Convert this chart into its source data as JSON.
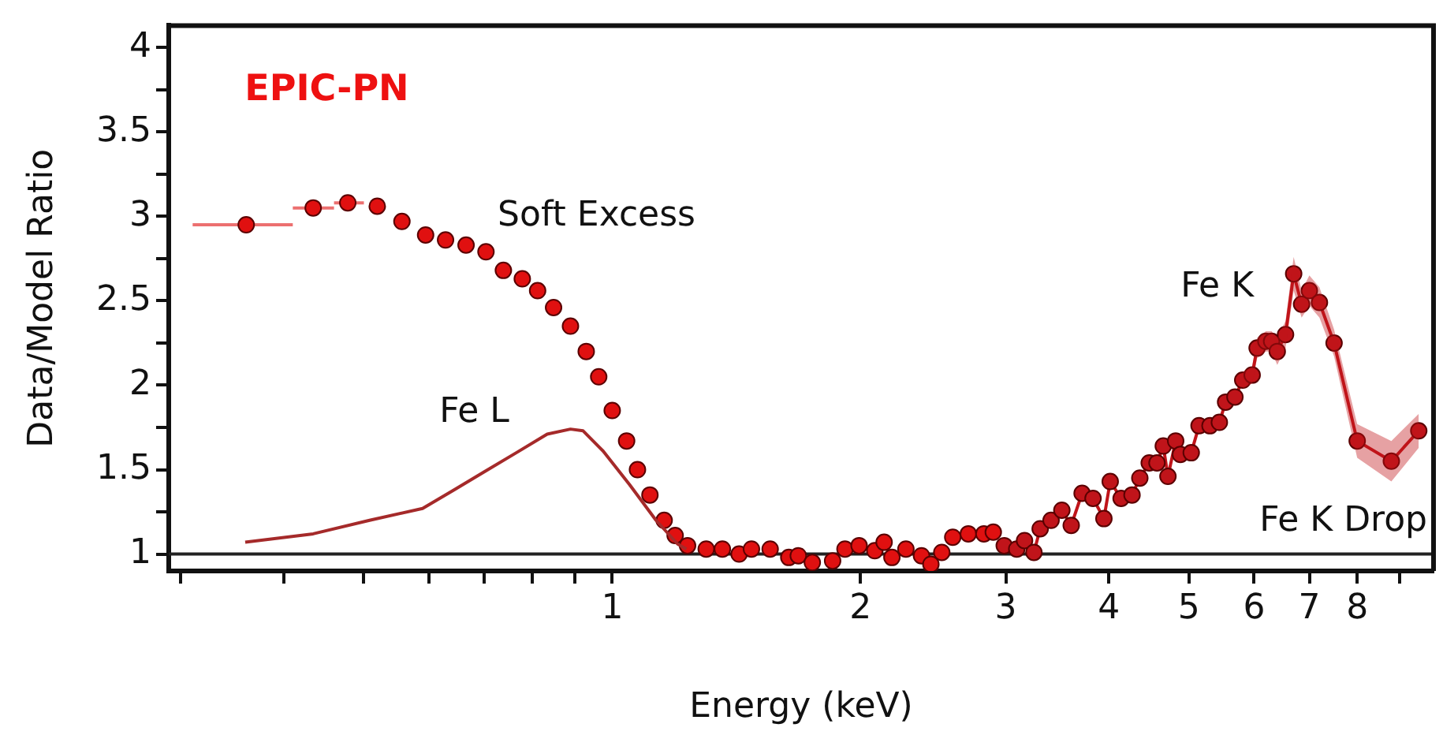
{
  "chart_data": {
    "type": "scatter",
    "xlabel": "Energy (keV)",
    "ylabel": "Data/Model Ratio",
    "log": "x",
    "xlim": [
      0.29,
      9.9
    ],
    "ylim": [
      0.9,
      4.13
    ],
    "xticks": [
      {
        "value": 0.3,
        "label": null
      },
      {
        "value": 0.4,
        "label": null
      },
      {
        "value": 0.5,
        "label": null
      },
      {
        "value": 0.6,
        "label": null
      },
      {
        "value": 0.7,
        "label": null
      },
      {
        "value": 0.8,
        "label": null
      },
      {
        "value": 0.9,
        "label": null
      },
      1,
      2,
      3,
      4,
      5,
      6,
      7,
      8,
      {
        "value": 9,
        "label": null
      }
    ],
    "yticks": [
      1,
      {
        "value": 1.25,
        "label": null
      },
      1.5,
      {
        "value": 1.75,
        "label": null
      },
      2,
      {
        "value": 2.25,
        "label": null
      },
      2.5,
      {
        "value": 2.75,
        "label": null
      },
      3,
      {
        "value": 3.25,
        "label": null
      },
      3.5,
      {
        "value": 3.75,
        "label": null
      },
      4
    ],
    "grid": false,
    "legend": false,
    "marker": "circle",
    "series": [
      {
        "type": "line",
        "color": "#a52a2a",
        "marker": "none",
        "x": [
          0.359,
          0.434,
          0.508,
          0.589,
          0.643,
          0.701,
          0.765,
          0.834,
          0.89,
          0.922,
          0.975,
          1.05,
          1.13,
          1.2,
          1.23
        ],
        "values": [
          1.07,
          1.12,
          1.2,
          1.27,
          1.38,
          1.49,
          1.6,
          1.71,
          1.74,
          1.73,
          1.61,
          1.41,
          1.2,
          1.06,
          1.03
        ]
      },
      {
        "type": "scatter",
        "color": "#e01010",
        "x": [
          0.36,
          0.434,
          0.478,
          0.519,
          0.556,
          0.594,
          0.628,
          0.665,
          0.703,
          0.738,
          0.778,
          0.812,
          0.849,
          0.89,
          0.93,
          0.963,
          1.0,
          1.041,
          1.073,
          1.111,
          1.156,
          1.192,
          1.234,
          1.3,
          1.36,
          1.425,
          1.475,
          1.554,
          1.637,
          1.681,
          1.748,
          1.85,
          1.915,
          1.992,
          2.081,
          2.136,
          2.183,
          2.27,
          2.371,
          2.434,
          2.509,
          2.587,
          2.702,
          2.822,
          2.897
        ],
        "values": [
          2.95,
          3.05,
          3.08,
          3.06,
          2.97,
          2.89,
          2.86,
          2.83,
          2.79,
          2.68,
          2.63,
          2.56,
          2.46,
          2.35,
          2.2,
          2.05,
          1.85,
          1.67,
          1.5,
          1.35,
          1.2,
          1.11,
          1.05,
          1.03,
          1.03,
          1.0,
          1.03,
          1.03,
          0.98,
          0.99,
          0.95,
          0.96,
          1.03,
          1.05,
          1.02,
          1.07,
          0.98,
          1.03,
          0.99,
          0.94,
          1.01,
          1.1,
          1.12,
          1.12,
          1.13
        ],
        "xerrors": [
          [
            0.31,
            0.41
          ],
          [
            0.41,
            0.46
          ],
          [
            0.46,
            0.5
          ],
          null,
          null,
          null,
          null,
          null,
          null,
          null,
          null,
          null,
          null,
          null,
          null,
          null,
          null,
          null,
          null,
          null,
          null,
          null,
          null,
          null,
          null,
          null,
          null,
          null,
          null,
          null,
          null,
          null,
          null,
          null,
          null,
          null,
          null,
          null,
          null,
          null,
          null,
          null,
          null,
          null,
          null
        ]
      },
      {
        "type": "line",
        "color": "#c0141a",
        "x": [
          2.987,
          3.093,
          3.161,
          3.245,
          3.302,
          3.404,
          3.508,
          3.601,
          3.712,
          3.827,
          3.945,
          4.015,
          4.139,
          4.267,
          4.361,
          4.477,
          4.575,
          4.656,
          4.717,
          4.82,
          4.884,
          5.034,
          5.145,
          5.304,
          5.445,
          5.541,
          5.687,
          5.812,
          5.967,
          6.05,
          6.2,
          6.3,
          6.4,
          6.55,
          6.7,
          6.85,
          7.0,
          7.2,
          7.5,
          8.0,
          8.8,
          9.5
        ],
        "values": [
          1.05,
          1.03,
          1.08,
          1.01,
          1.15,
          1.2,
          1.26,
          1.17,
          1.36,
          1.33,
          1.21,
          1.43,
          1.33,
          1.35,
          1.45,
          1.54,
          1.54,
          1.64,
          1.46,
          1.67,
          1.59,
          1.6,
          1.76,
          1.76,
          1.78,
          1.9,
          1.93,
          2.03,
          2.06,
          2.22,
          2.26,
          2.26,
          2.2,
          2.3,
          2.66,
          2.48,
          2.56,
          2.49,
          2.25,
          1.67,
          1.55,
          1.73
        ],
        "lower": [
          null,
          null,
          null,
          null,
          null,
          null,
          null,
          null,
          null,
          null,
          null,
          null,
          null,
          null,
          null,
          null,
          null,
          null,
          null,
          null,
          null,
          null,
          null,
          null,
          null,
          null,
          null,
          1.98,
          2.01,
          2.16,
          2.2,
          2.2,
          2.12,
          2.22,
          2.56,
          2.4,
          2.47,
          2.4,
          2.17,
          1.57,
          1.43,
          1.63
        ],
        "upper": [
          null,
          null,
          null,
          null,
          null,
          null,
          null,
          null,
          null,
          null,
          null,
          null,
          null,
          null,
          null,
          null,
          null,
          null,
          null,
          null,
          null,
          null,
          null,
          null,
          null,
          null,
          null,
          2.08,
          2.11,
          2.28,
          2.32,
          2.32,
          2.28,
          2.38,
          2.76,
          2.56,
          2.65,
          2.58,
          2.33,
          1.77,
          1.67,
          1.83
        ]
      }
    ],
    "ref_lines": [
      {
        "axis": "y",
        "value": 1,
        "color": "#222222"
      }
    ],
    "annotations": [
      "EPIC-PN",
      "Soft Excess",
      "Fe L",
      "Fe K",
      "Fe K Drop"
    ]
  }
}
